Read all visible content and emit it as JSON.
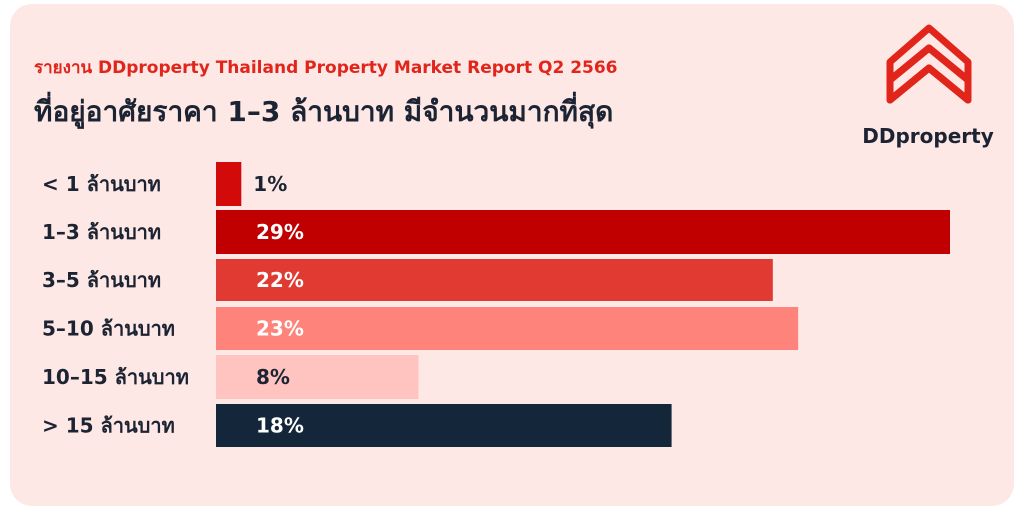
{
  "header": {
    "subtitle": "รายงาน DDproperty Thailand Property Market Report Q2 2566",
    "title": "ที่อยู่อาศัยราคา 1–3 ล้านบาท มีจำนวนมากที่สุด"
  },
  "logo": {
    "text": "DDproperty",
    "icon": "ddproperty-house-logo-icon",
    "color": "#e1251b"
  },
  "chart_data": {
    "type": "bar",
    "orientation": "horizontal",
    "title": "ที่อยู่อาศัยราคา 1–3 ล้านบาท มีจำนวนมากที่สุด",
    "xlabel": "",
    "ylabel": "",
    "categories": [
      "< 1 ล้านบาท",
      "1–3 ล้านบาท",
      "3–5 ล้านบาท",
      "5–10 ล้านบาท",
      "10–15 ล้านบาท",
      "> 15 ล้านบาท"
    ],
    "values": [
      1,
      29,
      22,
      23,
      8,
      18
    ],
    "value_labels": [
      "1%",
      "29%",
      "22%",
      "23%",
      "8%",
      "18%"
    ],
    "unit": "%",
    "xlim": [
      0,
      29
    ],
    "grid": false,
    "legend": "none",
    "colors": [
      "#d20a0a",
      "#c00000",
      "#e03a32",
      "#fd837b",
      "#ffc3c0",
      "#13263a"
    ],
    "label_colors": [
      "#1c2433",
      "#ffffff",
      "#ffffff",
      "#ffffff",
      "#1c2433",
      "#ffffff"
    ]
  }
}
